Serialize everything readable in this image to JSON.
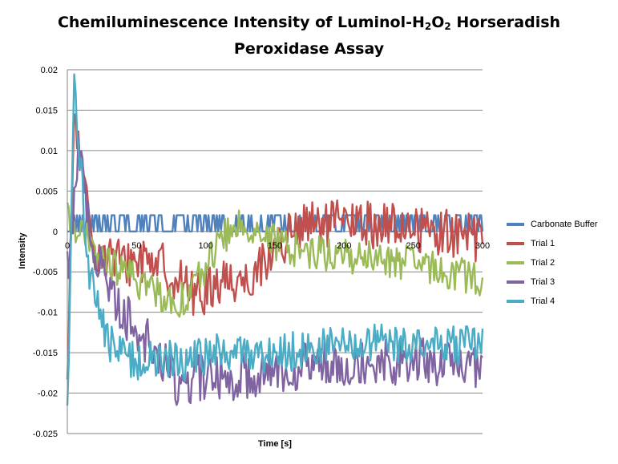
{
  "chart_data": {
    "type": "line",
    "title_parts": [
      "Chemiluminescence Intensity of Luminol-H",
      "2",
      "O",
      "2",
      " Horseradish",
      "Peroxidase Assay"
    ],
    "xlabel": "Time [s]",
    "ylabel": "Intensity",
    "xlim": [
      0,
      300
    ],
    "ylim": [
      -0.025,
      0.02
    ],
    "x_ticks": [
      0,
      50,
      100,
      150,
      200,
      250,
      300
    ],
    "y_ticks": [
      0.02,
      0.015,
      0.01,
      0.005,
      0,
      -0.005,
      -0.01,
      -0.015,
      -0.02,
      -0.025
    ],
    "y_tick_labels": [
      "0.02",
      "0.015",
      "0.01",
      "0.005",
      "0",
      "-0.005",
      "-0.01",
      "-0.015",
      "-0.02",
      "-0.025"
    ],
    "grid": "horizontal",
    "legend_position": "right",
    "sample_interval": 1,
    "series": [
      {
        "name": "Carbonate Buffer",
        "color": "#4F81BD",
        "x": [
          0,
          300
        ],
        "y": [
          0.001,
          0.001
        ],
        "noise_amplitude": 0.0012
      },
      {
        "name": "Trial 1",
        "color": "#C0504D",
        "x": [
          0,
          5,
          12,
          20,
          40,
          60,
          80,
          95,
          110,
          130,
          150,
          170,
          200,
          250,
          300
        ],
        "y": [
          -0.02,
          0.015,
          0.005,
          -0.002,
          -0.004,
          -0.003,
          -0.006,
          -0.008,
          -0.006,
          -0.006,
          -0.002,
          0.0005,
          0.001,
          0.0005,
          -0.001
        ],
        "noise_amplitude": 0.003
      },
      {
        "name": "Trial 2",
        "color": "#9BBB59",
        "x": [
          0,
          10,
          20,
          40,
          60,
          80,
          95,
          110,
          130,
          145,
          160,
          200,
          250,
          300
        ],
        "y": [
          0.002,
          0.0,
          -0.003,
          -0.005,
          -0.007,
          -0.009,
          -0.006,
          -0.001,
          0.001,
          -0.001,
          -0.002,
          -0.003,
          -0.004,
          -0.006
        ],
        "noise_amplitude": 0.0022
      },
      {
        "name": "Trial 3",
        "color": "#8064A2",
        "x": [
          0,
          8,
          20,
          40,
          60,
          80,
          100,
          120,
          150,
          200,
          250,
          300
        ],
        "y": [
          -0.005,
          0.01,
          -0.003,
          -0.01,
          -0.014,
          -0.019,
          -0.018,
          -0.018,
          -0.017,
          -0.016,
          -0.016,
          -0.017
        ],
        "noise_amplitude": 0.003
      },
      {
        "name": "Trial 4",
        "color": "#4BACC6",
        "x": [
          0,
          5,
          15,
          30,
          50,
          70,
          90,
          110,
          150,
          200,
          250,
          300
        ],
        "y": [
          -0.024,
          0.018,
          -0.004,
          -0.014,
          -0.016,
          -0.016,
          -0.016,
          -0.015,
          -0.015,
          -0.014,
          -0.014,
          -0.014
        ],
        "noise_amplitude": 0.0025
      }
    ]
  }
}
